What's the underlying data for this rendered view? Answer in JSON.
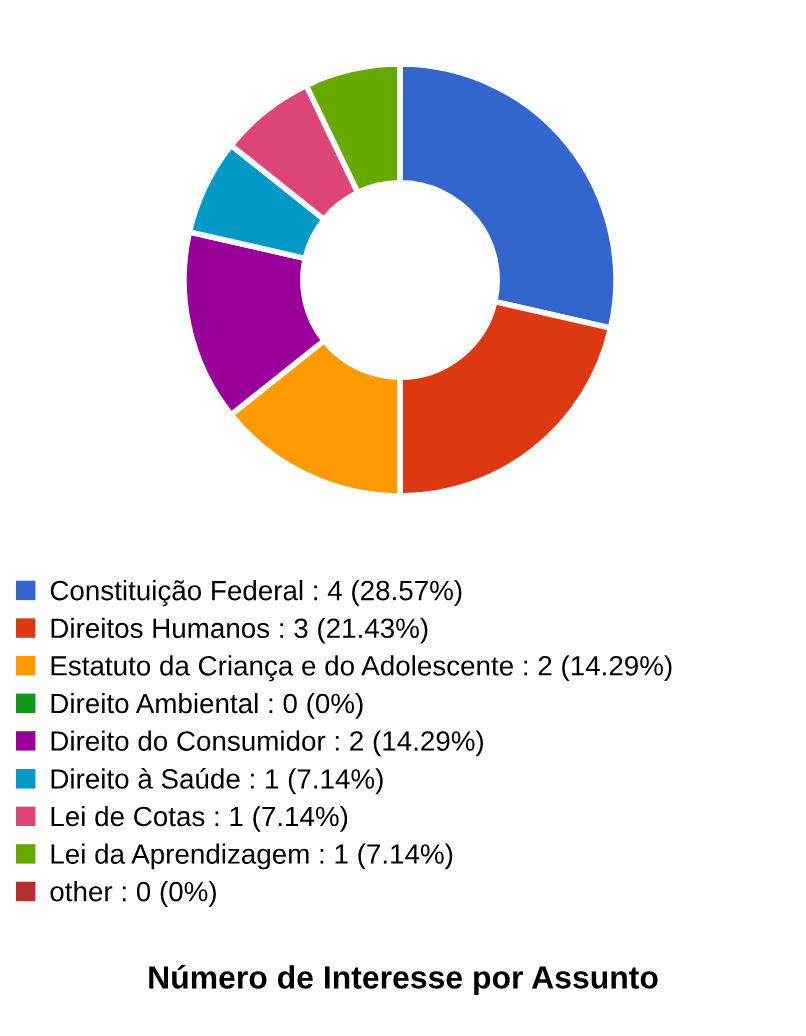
{
  "chart_data": {
    "type": "donut",
    "title": "Número de Interesse por Assunto",
    "categories": [
      "Constituição Federal",
      "Direitos Humanos",
      "Estatuto da Criança e do Adolescente",
      "Direito Ambiental",
      "Direito do Consumidor",
      "Direito à Saúde",
      "Lei de Cotas",
      "Lei da Aprendizagem",
      "other"
    ],
    "values": [
      4,
      3,
      2,
      0,
      2,
      1,
      1,
      1,
      0
    ],
    "value_labels": [
      "4 (28.57%)",
      "3 (21.43%)",
      "2 (14.29%)",
      "0 (0%)",
      "2 (14.29%)",
      "1 (7.14%)",
      "1 (7.14%)",
      "1 (7.14%)",
      "0 (0%)"
    ],
    "colors": [
      "#3366cc",
      "#dc3912",
      "#ff9900",
      "#109618",
      "#990099",
      "#0099c6",
      "#dd4477",
      "#66aa00",
      "#b82e2e"
    ],
    "legend": "bottom"
  }
}
